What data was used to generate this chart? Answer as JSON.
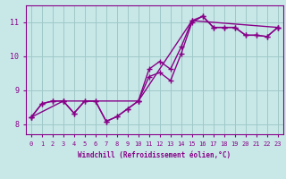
{
  "bg_color": "#c8e8e8",
  "grid_color": "#a0c8c8",
  "line_color": "#880088",
  "xlabel": "Windchill (Refroidissement éolien,°C)",
  "xlim": [
    -0.5,
    23.5
  ],
  "ylim": [
    7.7,
    11.5
  ],
  "yticks": [
    8,
    9,
    10,
    11
  ],
  "xticks": [
    0,
    1,
    2,
    3,
    4,
    5,
    6,
    7,
    8,
    9,
    10,
    11,
    12,
    13,
    14,
    15,
    16,
    17,
    18,
    19,
    20,
    21,
    22,
    23
  ],
  "line1_x": [
    0,
    1,
    2,
    3,
    4,
    5,
    6,
    7,
    8,
    9,
    10,
    11,
    12,
    13,
    14,
    15,
    16,
    17,
    18,
    19,
    20,
    21,
    22,
    23
  ],
  "line1_y": [
    8.2,
    8.6,
    8.68,
    8.68,
    8.32,
    8.68,
    8.68,
    8.08,
    8.22,
    8.45,
    8.68,
    9.4,
    9.52,
    9.28,
    10.08,
    11.0,
    11.18,
    10.85,
    10.85,
    10.85,
    10.62,
    10.62,
    10.58,
    10.85
  ],
  "line2_x": [
    0,
    1,
    2,
    3,
    4,
    5,
    6,
    7,
    8,
    9,
    10,
    11,
    12,
    13,
    14,
    15,
    16,
    17,
    18,
    19,
    20,
    21,
    22,
    23
  ],
  "line2_y": [
    8.2,
    8.6,
    8.68,
    8.68,
    8.32,
    8.68,
    8.68,
    8.08,
    8.22,
    8.45,
    8.68,
    9.62,
    9.85,
    9.62,
    10.28,
    11.05,
    11.18,
    10.85,
    10.85,
    10.85,
    10.62,
    10.62,
    10.58,
    10.85
  ],
  "line3_x": [
    0,
    3,
    10,
    15,
    23
  ],
  "line3_y": [
    8.2,
    8.68,
    8.68,
    11.05,
    10.85
  ]
}
